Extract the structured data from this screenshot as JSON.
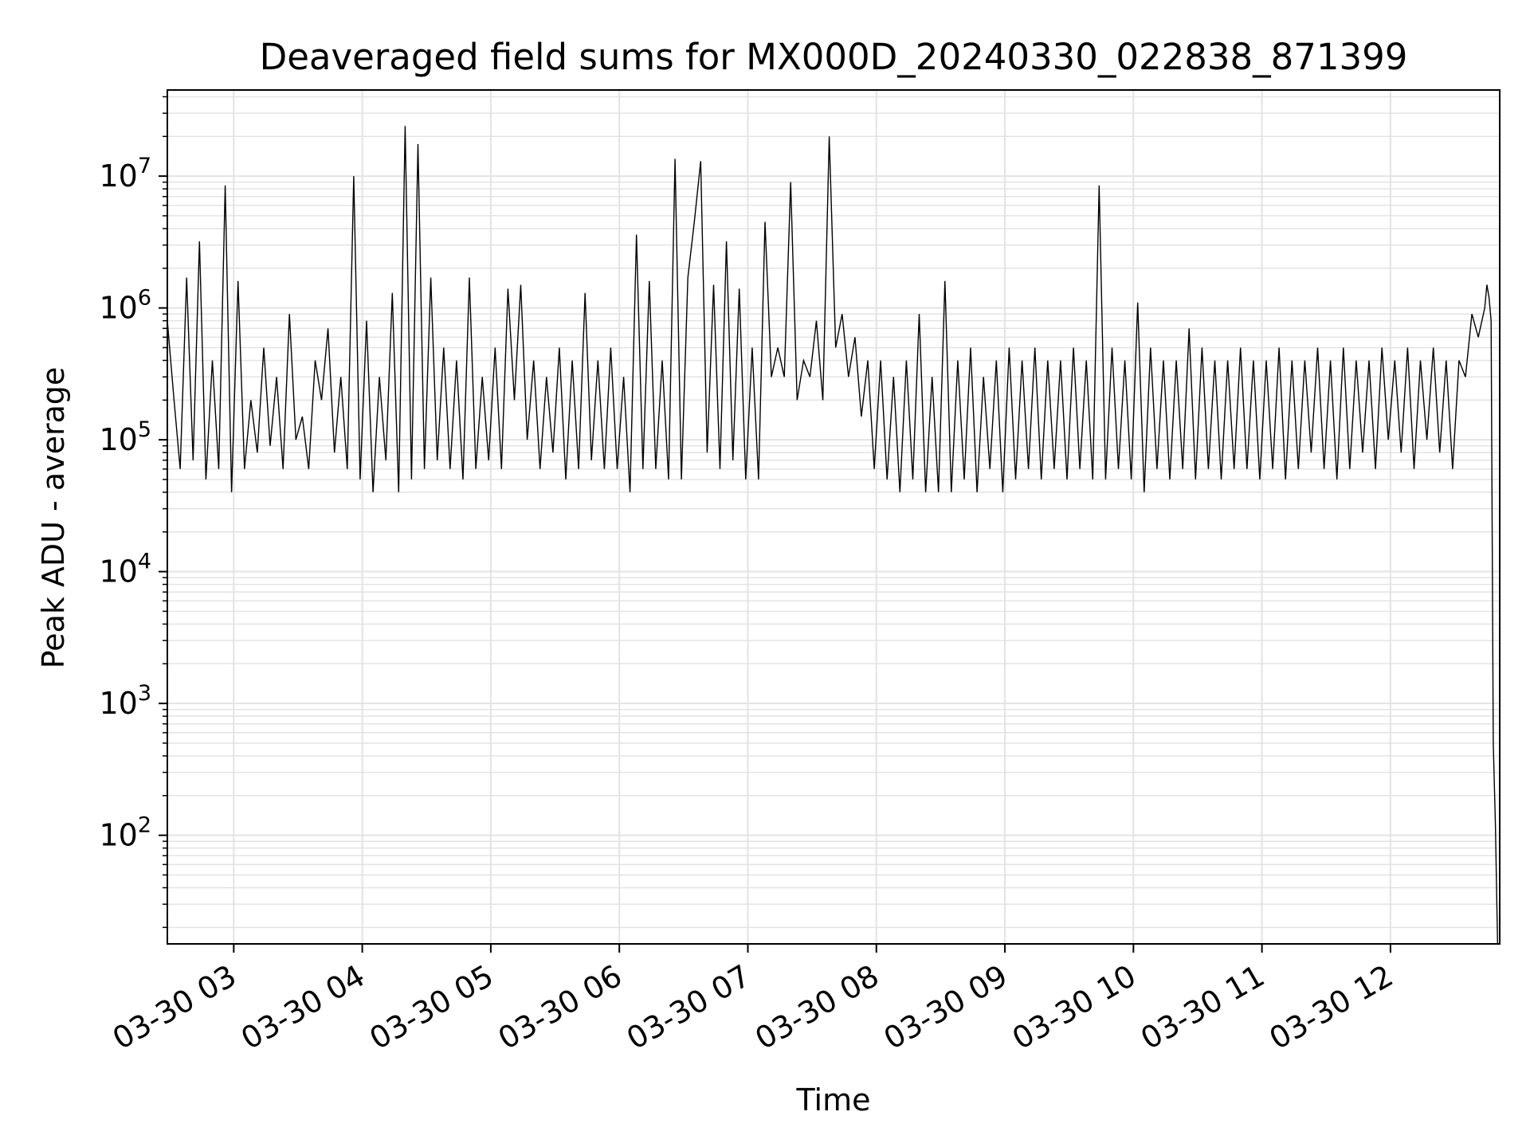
{
  "chart_data": {
    "type": "line",
    "title": "Deaveraged field sums for MX000D_20240330_022838_871399",
    "xlabel": "Time",
    "ylabel": "Peak ADU - average",
    "yscale": "log",
    "xlim": [
      "2024-03-30 02:29",
      "2024-03-30 12:51"
    ],
    "ylim": [
      15,
      45000000
    ],
    "grid": true,
    "x_ticks": [
      {
        "value": "2024-03-30 03:00",
        "label": "03-30 03"
      },
      {
        "value": "2024-03-30 04:00",
        "label": "03-30 04"
      },
      {
        "value": "2024-03-30 05:00",
        "label": "03-30 05"
      },
      {
        "value": "2024-03-30 06:00",
        "label": "03-30 06"
      },
      {
        "value": "2024-03-30 07:00",
        "label": "03-30 07"
      },
      {
        "value": "2024-03-30 08:00",
        "label": "03-30 08"
      },
      {
        "value": "2024-03-30 09:00",
        "label": "03-30 09"
      },
      {
        "value": "2024-03-30 10:00",
        "label": "03-30 10"
      },
      {
        "value": "2024-03-30 11:00",
        "label": "03-30 11"
      },
      {
        "value": "2024-03-30 12:00",
        "label": "03-30 12"
      }
    ],
    "y_ticks": [
      {
        "value": 100,
        "base": "10",
        "exp": "2"
      },
      {
        "value": 1000,
        "base": "10",
        "exp": "3"
      },
      {
        "value": 10000,
        "base": "10",
        "exp": "4"
      },
      {
        "value": 100000,
        "base": "10",
        "exp": "5"
      },
      {
        "value": 1000000,
        "base": "10",
        "exp": "6"
      },
      {
        "value": 10000000,
        "base": "10",
        "exp": "7"
      }
    ],
    "series": [
      {
        "color": "#000000",
        "x": [
          "2024-03-30 02:29",
          "2024-03-30 02:32",
          "2024-03-30 02:35",
          "2024-03-30 02:38",
          "2024-03-30 02:41",
          "2024-03-30 02:44",
          "2024-03-30 02:47",
          "2024-03-30 02:50",
          "2024-03-30 02:53",
          "2024-03-30 02:56",
          "2024-03-30 02:59",
          "2024-03-30 03:02",
          "2024-03-30 03:05",
          "2024-03-30 03:08",
          "2024-03-30 03:11",
          "2024-03-30 03:14",
          "2024-03-30 03:17",
          "2024-03-30 03:20",
          "2024-03-30 03:23",
          "2024-03-30 03:26",
          "2024-03-30 03:29",
          "2024-03-30 03:32",
          "2024-03-30 03:35",
          "2024-03-30 03:38",
          "2024-03-30 03:41",
          "2024-03-30 03:44",
          "2024-03-30 03:47",
          "2024-03-30 03:50",
          "2024-03-30 03:53",
          "2024-03-30 03:56",
          "2024-03-30 03:59",
          "2024-03-30 04:02",
          "2024-03-30 04:05",
          "2024-03-30 04:08",
          "2024-03-30 04:11",
          "2024-03-30 04:14",
          "2024-03-30 04:17",
          "2024-03-30 04:20",
          "2024-03-30 04:23",
          "2024-03-30 04:26",
          "2024-03-30 04:29",
          "2024-03-30 04:32",
          "2024-03-30 04:35",
          "2024-03-30 04:38",
          "2024-03-30 04:41",
          "2024-03-30 04:44",
          "2024-03-30 04:47",
          "2024-03-30 04:50",
          "2024-03-30 04:53",
          "2024-03-30 04:56",
          "2024-03-30 04:59",
          "2024-03-30 05:02",
          "2024-03-30 05:05",
          "2024-03-30 05:08",
          "2024-03-30 05:11",
          "2024-03-30 05:14",
          "2024-03-30 05:17",
          "2024-03-30 05:20",
          "2024-03-30 05:23",
          "2024-03-30 05:26",
          "2024-03-30 05:29",
          "2024-03-30 05:32",
          "2024-03-30 05:35",
          "2024-03-30 05:38",
          "2024-03-30 05:41",
          "2024-03-30 05:44",
          "2024-03-30 05:47",
          "2024-03-30 05:50",
          "2024-03-30 05:53",
          "2024-03-30 05:56",
          "2024-03-30 05:59",
          "2024-03-30 06:02",
          "2024-03-30 06:05",
          "2024-03-30 06:08",
          "2024-03-30 06:11",
          "2024-03-30 06:14",
          "2024-03-30 06:17",
          "2024-03-30 06:20",
          "2024-03-30 06:23",
          "2024-03-30 06:26",
          "2024-03-30 06:29",
          "2024-03-30 06:32",
          "2024-03-30 06:35",
          "2024-03-30 06:38",
          "2024-03-30 06:41",
          "2024-03-30 06:44",
          "2024-03-30 06:47",
          "2024-03-30 06:50",
          "2024-03-30 06:53",
          "2024-03-30 06:56",
          "2024-03-30 06:59",
          "2024-03-30 07:02",
          "2024-03-30 07:05",
          "2024-03-30 07:08",
          "2024-03-30 07:11",
          "2024-03-30 07:14",
          "2024-03-30 07:17",
          "2024-03-30 07:20",
          "2024-03-30 07:23",
          "2024-03-30 07:26",
          "2024-03-30 07:29",
          "2024-03-30 07:32",
          "2024-03-30 07:35",
          "2024-03-30 07:38",
          "2024-03-30 07:41",
          "2024-03-30 07:44",
          "2024-03-30 07:47",
          "2024-03-30 07:50",
          "2024-03-30 07:53",
          "2024-03-30 07:56",
          "2024-03-30 07:59",
          "2024-03-30 08:02",
          "2024-03-30 08:05",
          "2024-03-30 08:08",
          "2024-03-30 08:11",
          "2024-03-30 08:14",
          "2024-03-30 08:17",
          "2024-03-30 08:20",
          "2024-03-30 08:23",
          "2024-03-30 08:26",
          "2024-03-30 08:29",
          "2024-03-30 08:32",
          "2024-03-30 08:35",
          "2024-03-30 08:38",
          "2024-03-30 08:41",
          "2024-03-30 08:44",
          "2024-03-30 08:47",
          "2024-03-30 08:50",
          "2024-03-30 08:53",
          "2024-03-30 08:56",
          "2024-03-30 08:59",
          "2024-03-30 09:02",
          "2024-03-30 09:05",
          "2024-03-30 09:08",
          "2024-03-30 09:11",
          "2024-03-30 09:14",
          "2024-03-30 09:17",
          "2024-03-30 09:20",
          "2024-03-30 09:23",
          "2024-03-30 09:26",
          "2024-03-30 09:29",
          "2024-03-30 09:32",
          "2024-03-30 09:35",
          "2024-03-30 09:38",
          "2024-03-30 09:41",
          "2024-03-30 09:44",
          "2024-03-30 09:47",
          "2024-03-30 09:50",
          "2024-03-30 09:53",
          "2024-03-30 09:56",
          "2024-03-30 09:59",
          "2024-03-30 10:02",
          "2024-03-30 10:05",
          "2024-03-30 10:08",
          "2024-03-30 10:11",
          "2024-03-30 10:14",
          "2024-03-30 10:17",
          "2024-03-30 10:20",
          "2024-03-30 10:23",
          "2024-03-30 10:26",
          "2024-03-30 10:29",
          "2024-03-30 10:32",
          "2024-03-30 10:35",
          "2024-03-30 10:38",
          "2024-03-30 10:41",
          "2024-03-30 10:44",
          "2024-03-30 10:47",
          "2024-03-30 10:50",
          "2024-03-30 10:53",
          "2024-03-30 10:56",
          "2024-03-30 10:59",
          "2024-03-30 11:02",
          "2024-03-30 11:05",
          "2024-03-30 11:08",
          "2024-03-30 11:11",
          "2024-03-30 11:14",
          "2024-03-30 11:17",
          "2024-03-30 11:20",
          "2024-03-30 11:23",
          "2024-03-30 11:26",
          "2024-03-30 11:29",
          "2024-03-30 11:32",
          "2024-03-30 11:35",
          "2024-03-30 11:38",
          "2024-03-30 11:41",
          "2024-03-30 11:44",
          "2024-03-30 11:47",
          "2024-03-30 11:50",
          "2024-03-30 11:53",
          "2024-03-30 11:56",
          "2024-03-30 11:59",
          "2024-03-30 12:02",
          "2024-03-30 12:05",
          "2024-03-30 12:08",
          "2024-03-30 12:11",
          "2024-03-30 12:14",
          "2024-03-30 12:17",
          "2024-03-30 12:20",
          "2024-03-30 12:23",
          "2024-03-30 12:26",
          "2024-03-30 12:29",
          "2024-03-30 12:32",
          "2024-03-30 12:35",
          "2024-03-30 12:38",
          "2024-03-30 12:41",
          "2024-03-30 12:44",
          "2024-03-30 12:45",
          "2024-03-30 12:46",
          "2024-03-30 12:47",
          "2024-03-30 12:48",
          "2024-03-30 12:49",
          "2024-03-30 12:50"
        ],
        "y": [
          800000,
          210000,
          60000,
          1700000,
          70000,
          3200000,
          50000,
          400000,
          60000,
          8500000,
          40000,
          1600000,
          60000,
          200000,
          80000,
          500000,
          90000,
          300000,
          60000,
          900000,
          100000,
          150000,
          60000,
          400000,
          200000,
          700000,
          80000,
          300000,
          60000,
          10000000,
          50000,
          800000,
          40000,
          300000,
          70000,
          1300000,
          40000,
          24000000,
          50000,
          17500000,
          60000,
          1700000,
          70000,
          500000,
          60000,
          400000,
          50000,
          1700000,
          60000,
          300000,
          70000,
          500000,
          60000,
          1400000,
          200000,
          1500000,
          100000,
          400000,
          60000,
          300000,
          80000,
          500000,
          50000,
          400000,
          60000,
          1300000,
          70000,
          400000,
          60000,
          500000,
          60000,
          300000,
          40000,
          3600000,
          60000,
          1600000,
          60000,
          400000,
          50000,
          13500000,
          50000,
          1700000,
          4500000,
          13000000,
          80000,
          1500000,
          60000,
          3200000,
          70000,
          1400000,
          50000,
          500000,
          50000,
          4500000,
          300000,
          500000,
          300000,
          9000000,
          200000,
          400000,
          300000,
          800000,
          200000,
          20000000,
          500000,
          900000,
          300000,
          600000,
          150000,
          400000,
          60000,
          400000,
          50000,
          300000,
          40000,
          400000,
          50000,
          900000,
          40000,
          300000,
          40000,
          1600000,
          40000,
          400000,
          50000,
          500000,
          40000,
          300000,
          60000,
          400000,
          40000,
          500000,
          50000,
          400000,
          60000,
          500000,
          50000,
          400000,
          60000,
          400000,
          50000,
          500000,
          60000,
          400000,
          50000,
          8500000,
          50000,
          500000,
          60000,
          400000,
          50000,
          1100000,
          40000,
          500000,
          60000,
          400000,
          50000,
          400000,
          60000,
          700000,
          50000,
          500000,
          60000,
          400000,
          50000,
          400000,
          60000,
          500000,
          60000,
          400000,
          50000,
          400000,
          60000,
          500000,
          50000,
          400000,
          60000,
          400000,
          80000,
          500000,
          60000,
          400000,
          50000,
          500000,
          60000,
          400000,
          80000,
          400000,
          60000,
          500000,
          100000,
          400000,
          80000,
          500000,
          60000,
          400000,
          100000,
          500000,
          80000,
          400000,
          60000,
          400000,
          300000,
          900000,
          600000,
          1000000,
          1500000,
          1200000,
          800000,
          500,
          120,
          15
        ]
      }
    ]
  }
}
